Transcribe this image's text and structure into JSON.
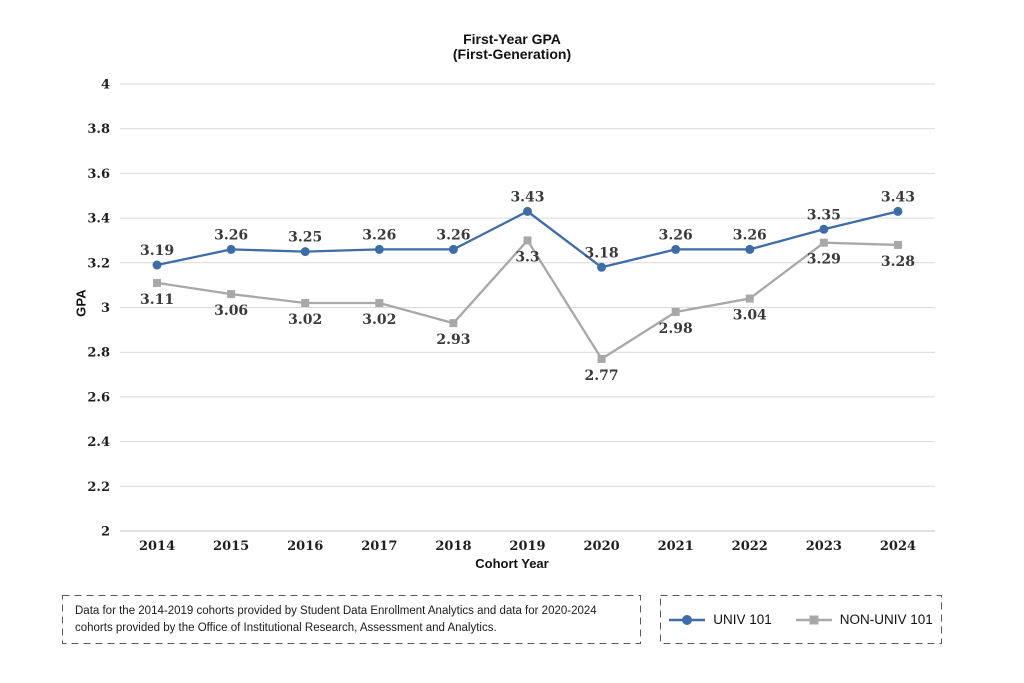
{
  "chart": {
    "title_line1": "First-Year GPA",
    "title_line2": "(First-Generation)",
    "ylabel": "GPA",
    "xlabel": "Cohort Year"
  },
  "chart_data": {
    "type": "line",
    "title": "First-Year GPA (First-Generation)",
    "xlabel": "Cohort Year",
    "ylabel": "GPA",
    "ylim": [
      2,
      4
    ],
    "ytick_step": 0.2,
    "grid": true,
    "legend_position": "bottom-right",
    "categories": [
      "2014",
      "2015",
      "2016",
      "2017",
      "2018",
      "2019",
      "2020",
      "2021",
      "2022",
      "2023",
      "2024"
    ],
    "series": [
      {
        "name": "UNIV 101",
        "color": "#3E6CA8",
        "marker": "circle",
        "label_position": "above",
        "values": [
          3.19,
          3.26,
          3.25,
          3.26,
          3.26,
          3.43,
          3.18,
          3.26,
          3.26,
          3.35,
          3.43
        ]
      },
      {
        "name": "NON-UNIV 101",
        "color": "#A8A8A8",
        "marker": "square",
        "label_position": "below",
        "values": [
          3.11,
          3.06,
          3.02,
          3.02,
          2.93,
          3.3,
          2.77,
          2.98,
          3.04,
          3.29,
          3.28
        ]
      }
    ],
    "gridline_color": "#D9D9D9",
    "axis_line_color": "#BFBFBF",
    "box_border_color": "#595959"
  },
  "footnote": "Data for the 2014-2019 cohorts provided by Student Data Enrollment Analytics and data for 2020-2024 cohorts provided by the Office of Institutional Research, Assessment and Analytics."
}
